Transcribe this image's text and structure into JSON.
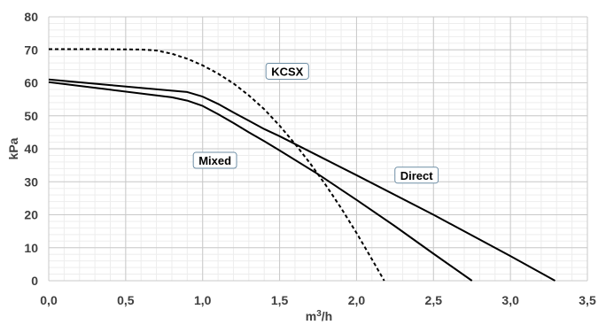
{
  "chart_data": {
    "type": "line",
    "xlabel": "m³/h",
    "ylabel": "kPa",
    "xlim": [
      0,
      3.5
    ],
    "ylim": [
      0,
      80
    ],
    "x_ticks": [
      0,
      0.5,
      1.0,
      1.5,
      2.0,
      2.5,
      3.0,
      3.5
    ],
    "x_tick_labels": [
      "0,0",
      "0,5",
      "1,0",
      "1,5",
      "2,0",
      "2,5",
      "3,0",
      "3,5"
    ],
    "y_ticks": [
      0,
      10,
      20,
      30,
      40,
      50,
      60,
      70,
      80
    ],
    "y_tick_labels": [
      "0",
      "10",
      "20",
      "30",
      "40",
      "50",
      "60",
      "70",
      "80"
    ],
    "grid": true,
    "series": [
      {
        "name": "KCSX",
        "line_style": "dashed",
        "color": "#000000",
        "x": [
          0,
          0.3,
          0.6,
          0.7,
          0.8,
          0.9,
          1.0,
          1.1,
          1.2,
          1.3,
          1.4,
          1.5,
          1.6,
          1.7,
          1.8,
          1.9,
          2.0,
          2.1,
          2.18
        ],
        "y": [
          70.2,
          70.2,
          70.1,
          69.8,
          68.8,
          67.3,
          65.3,
          62.8,
          59.8,
          56.2,
          52.0,
          47.0,
          41.5,
          35.5,
          29.0,
          22.0,
          14.5,
          6.5,
          0
        ]
      },
      {
        "name": "Direct",
        "line_style": "solid",
        "color": "#000000",
        "x": [
          0,
          0.4,
          0.8,
          0.9,
          1.0,
          1.1,
          1.2,
          1.3,
          1.4,
          1.5,
          1.75,
          2.0,
          2.5,
          3.0,
          3.29
        ],
        "y": [
          61.0,
          59.3,
          57.6,
          57.2,
          55.8,
          53.6,
          51.0,
          48.5,
          46.0,
          43.8,
          37.9,
          32.0,
          20.0,
          7.5,
          0
        ]
      },
      {
        "name": "Mixed",
        "line_style": "solid",
        "color": "#000000",
        "x": [
          0,
          0.4,
          0.8,
          0.9,
          1.0,
          1.1,
          1.2,
          1.3,
          1.4,
          1.5,
          1.75,
          2.0,
          2.25,
          2.5,
          2.75
        ],
        "y": [
          60.2,
          57.9,
          55.6,
          54.6,
          53.0,
          50.5,
          47.8,
          45.0,
          42.3,
          39.5,
          32.3,
          24.5,
          16.5,
          8.2,
          0
        ]
      }
    ],
    "annotations": [
      {
        "text": "KCSX",
        "series": "KCSX",
        "x": 1.55,
        "y": 63.5
      },
      {
        "text": "Direct",
        "series": "Direct",
        "x": 2.39,
        "y": 32.0
      },
      {
        "text": "Mixed",
        "series": "Mixed",
        "x": 1.08,
        "y": 36.5
      }
    ]
  }
}
